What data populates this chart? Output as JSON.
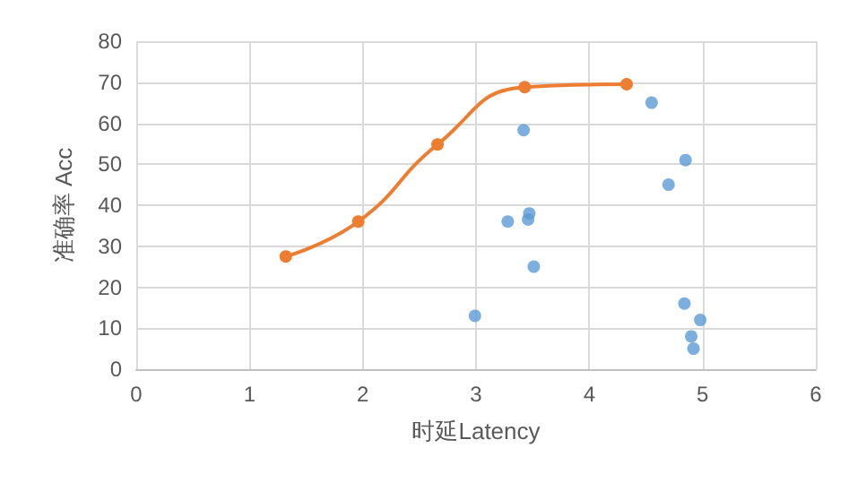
{
  "chart_data": {
    "type": "scatter",
    "xlabel": "时延Latency",
    "ylabel": "准确率 Acc",
    "xlim": [
      0,
      6
    ],
    "xticks": [
      0,
      1,
      2,
      3,
      4,
      5,
      6
    ],
    "ylim": [
      0,
      80
    ],
    "yticks": [
      0,
      10,
      20,
      30,
      40,
      50,
      60,
      70,
      80
    ],
    "grid": true,
    "marker": "circle",
    "series": [
      {
        "color": "#5b9bd5",
        "x": [
          2.99,
          3.28,
          3.42,
          3.46,
          3.47,
          3.51,
          4.55,
          4.7,
          4.85,
          4.84,
          4.9,
          4.92,
          4.98
        ],
        "values": [
          13,
          36,
          58.3,
          36.5,
          38,
          25,
          65,
          45,
          51,
          16,
          8,
          5,
          12
        ]
      },
      {
        "type": "line",
        "color": "#ed7d31",
        "x": [
          1.32,
          1.96,
          2.66,
          3.43,
          4.33
        ],
        "values": [
          27.5,
          36,
          54.8,
          68.8,
          69.5
        ]
      }
    ]
  }
}
